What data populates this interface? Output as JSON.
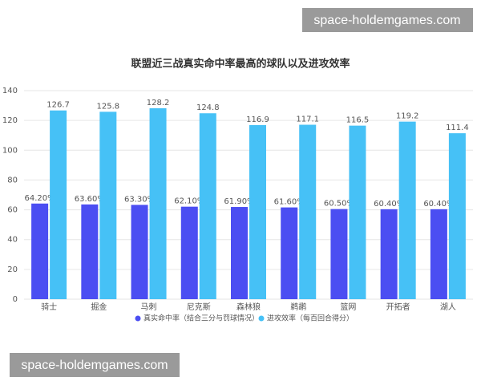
{
  "watermarks": [
    "space-holdemgames.com",
    "space-holdemgames.com"
  ],
  "chart_data": {
    "type": "bar",
    "title": "联盟近三战真实命中率最高的球队以及进攻效率",
    "categories": [
      "骑士",
      "掘金",
      "马刺",
      "尼克斯",
      "森林狼",
      "鹈鹕",
      "篮网",
      "开拓者",
      "湖人"
    ],
    "series": [
      {
        "name": "真实命中率（结合三分与罚球情况）",
        "color": "#4b4ef2",
        "values": [
          64.2,
          63.6,
          63.3,
          62.1,
          61.9,
          61.6,
          60.5,
          60.4,
          60.4
        ],
        "value_labels": [
          "64.20%",
          "63.60%",
          "63.30%",
          "62.10%",
          "61.90%",
          "61.60%",
          "60.50%",
          "60.40%",
          "60.40%"
        ]
      },
      {
        "name": "进攻效率（每百回合得分）",
        "color": "#46c1f6",
        "values": [
          126.7,
          125.8,
          128.2,
          124.8,
          116.9,
          117.1,
          116.5,
          119.2,
          111.4
        ]
      }
    ],
    "ylim": [
      0,
      140
    ],
    "yticks": [
      0,
      20,
      40,
      60,
      80,
      100,
      120,
      140
    ],
    "grid": true,
    "legend": "bottom"
  }
}
